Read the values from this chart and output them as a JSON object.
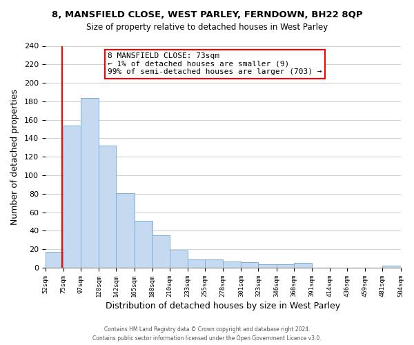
{
  "title": "8, MANSFIELD CLOSE, WEST PARLEY, FERNDOWN, BH22 8QP",
  "subtitle": "Size of property relative to detached houses in West Parley",
  "xlabel": "Distribution of detached houses by size in West Parley",
  "ylabel": "Number of detached properties",
  "bar_color": "#c5d9f0",
  "bar_edge_color": "#7aadd4",
  "bin_edges": [
    52,
    75,
    97,
    120,
    142,
    165,
    188,
    210,
    233,
    255,
    278,
    301,
    323,
    346,
    368,
    391,
    414,
    436,
    459,
    481,
    504
  ],
  "bin_labels": [
    "52sqm",
    "75sqm",
    "97sqm",
    "120sqm",
    "142sqm",
    "165sqm",
    "188sqm",
    "210sqm",
    "233sqm",
    "255sqm",
    "278sqm",
    "301sqm",
    "323sqm",
    "346sqm",
    "368sqm",
    "391sqm",
    "414sqm",
    "436sqm",
    "459sqm",
    "481sqm",
    "504sqm"
  ],
  "bar_heights": [
    17,
    154,
    184,
    132,
    81,
    51,
    35,
    19,
    9,
    9,
    7,
    6,
    4,
    4,
    5,
    0,
    0,
    0,
    0,
    2
  ],
  "ylim": [
    0,
    240
  ],
  "yticks": [
    0,
    20,
    40,
    60,
    80,
    100,
    120,
    140,
    160,
    180,
    200,
    220,
    240
  ],
  "property_line_x": 73,
  "annotation_title": "8 MANSFIELD CLOSE: 73sqm",
  "annotation_line1": "← 1% of detached houses are smaller (9)",
  "annotation_line2": "99% of semi-detached houses are larger (703) →",
  "footer_line1": "Contains HM Land Registry data © Crown copyright and database right 2024.",
  "footer_line2": "Contains public sector information licensed under the Open Government Licence v3.0.",
  "background_color": "#ffffff",
  "grid_color": "#d0d0d0"
}
